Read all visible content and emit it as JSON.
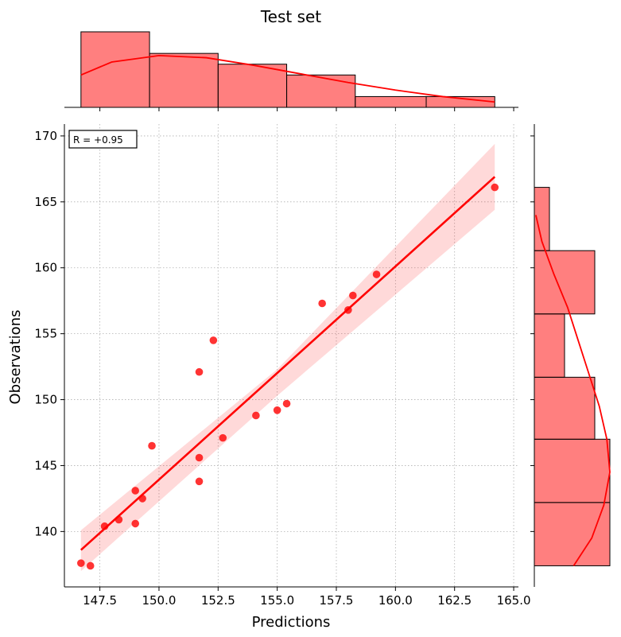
{
  "chart_data": {
    "type": "scatter",
    "title": "Test set",
    "xlabel": "Predictions",
    "ylabel": "Observations",
    "xlim": [
      146.0,
      165.2
    ],
    "ylim": [
      135.8,
      170.9
    ],
    "xticks": [
      "147.5",
      "150.0",
      "152.5",
      "155.0",
      "157.5",
      "160.0",
      "162.5",
      "165.0"
    ],
    "xtick_values": [
      147.5,
      150.0,
      152.5,
      155.0,
      157.5,
      160.0,
      162.5,
      165.0
    ],
    "yticks": [
      "140",
      "145",
      "150",
      "155",
      "160",
      "165",
      "170"
    ],
    "ytick_values": [
      140,
      145,
      150,
      155,
      160,
      165,
      170
    ],
    "grid": true,
    "color": "#ff0000",
    "annotation": "R = +0.95",
    "points": [
      {
        "x": 146.7,
        "y": 137.6
      },
      {
        "x": 147.1,
        "y": 137.4
      },
      {
        "x": 147.7,
        "y": 140.4
      },
      {
        "x": 148.3,
        "y": 140.9
      },
      {
        "x": 149.0,
        "y": 143.1
      },
      {
        "x": 149.0,
        "y": 140.6
      },
      {
        "x": 149.3,
        "y": 142.5
      },
      {
        "x": 149.7,
        "y": 146.5
      },
      {
        "x": 151.7,
        "y": 152.1
      },
      {
        "x": 151.7,
        "y": 145.6
      },
      {
        "x": 151.7,
        "y": 143.8
      },
      {
        "x": 152.3,
        "y": 154.5
      },
      {
        "x": 152.7,
        "y": 147.1
      },
      {
        "x": 154.1,
        "y": 148.8
      },
      {
        "x": 155.0,
        "y": 149.2
      },
      {
        "x": 155.4,
        "y": 149.7
      },
      {
        "x": 156.9,
        "y": 157.3
      },
      {
        "x": 158.0,
        "y": 156.8
      },
      {
        "x": 158.2,
        "y": 157.9
      },
      {
        "x": 159.2,
        "y": 159.5
      },
      {
        "x": 164.2,
        "y": 166.1
      }
    ],
    "regression": {
      "x": [
        146.7,
        164.2
      ],
      "y": [
        138.6,
        166.9
      ]
    },
    "confidence_band": {
      "x": [
        146.7,
        155.0,
        164.2
      ],
      "lower": [
        137.0,
        150.3,
        164.4
      ],
      "upper": [
        140.1,
        152.3,
        169.4
      ]
    },
    "top_histogram": {
      "bin_edges": [
        146.7,
        149.6,
        152.5,
        155.4,
        158.3,
        161.3,
        164.2
      ],
      "counts": [
        7,
        5,
        4,
        3,
        1,
        1
      ],
      "kde": [
        [
          146.7,
          3.0
        ],
        [
          148.0,
          4.2
        ],
        [
          150.0,
          4.8
        ],
        [
          152.0,
          4.6
        ],
        [
          154.0,
          3.9
        ],
        [
          156.0,
          3.1
        ],
        [
          158.0,
          2.3
        ],
        [
          160.0,
          1.6
        ],
        [
          162.0,
          1.0
        ],
        [
          164.2,
          0.5
        ]
      ]
    },
    "right_histogram": {
      "bin_edges": [
        137.4,
        142.2,
        147.0,
        151.7,
        156.5,
        161.3,
        166.1
      ],
      "counts": [
        5,
        5,
        4,
        2,
        4,
        1
      ],
      "kde": [
        [
          137.4,
          2.6
        ],
        [
          139.5,
          3.8
        ],
        [
          142.0,
          4.6
        ],
        [
          144.5,
          5.0
        ],
        [
          147.0,
          4.8
        ],
        [
          149.5,
          4.3
        ],
        [
          152.0,
          3.6
        ],
        [
          154.5,
          2.9
        ],
        [
          157.0,
          2.2
        ],
        [
          159.5,
          1.3
        ],
        [
          162.0,
          0.5
        ],
        [
          164.0,
          0.1
        ]
      ]
    }
  }
}
